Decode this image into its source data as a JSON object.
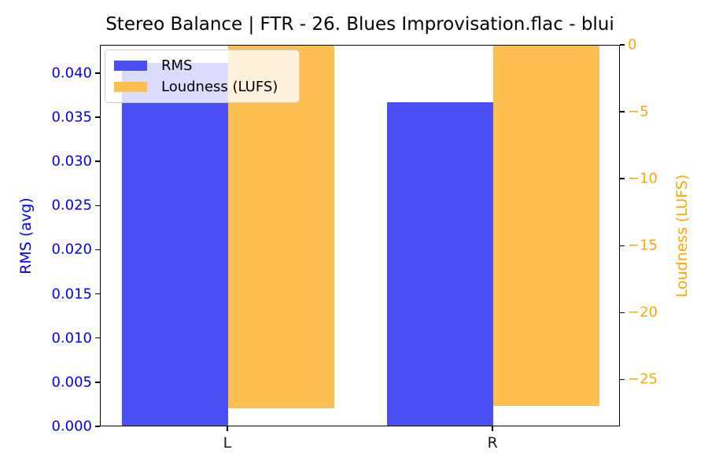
{
  "chart_data": {
    "type": "bar",
    "title": "Stereo Balance | FTR - 26. Blues Improvisation.flac - blui",
    "categories": [
      "L",
      "R"
    ],
    "series": [
      {
        "name": "RMS",
        "axis": "left",
        "color": "#4a4ff5",
        "values": [
          0.0412,
          0.0368
        ]
      },
      {
        "name": "Loudness (LUFS)",
        "axis": "right",
        "color": "#fdbf4f",
        "values": [
          -27.1,
          -26.9
        ]
      }
    ],
    "left_axis": {
      "label": "RMS (avg)",
      "color": "#0000ee",
      "ylim": [
        0,
        0.0432
      ],
      "ticks": [
        {
          "v": 0.0,
          "label": "0.000"
        },
        {
          "v": 0.005,
          "label": "0.005"
        },
        {
          "v": 0.01,
          "label": "0.010"
        },
        {
          "v": 0.015,
          "label": "0.015"
        },
        {
          "v": 0.02,
          "label": "0.020"
        },
        {
          "v": 0.025,
          "label": "0.025"
        },
        {
          "v": 0.03,
          "label": "0.030"
        },
        {
          "v": 0.035,
          "label": "0.035"
        },
        {
          "v": 0.04,
          "label": "0.040"
        }
      ]
    },
    "right_axis": {
      "label": "Loudness (LUFS)",
      "color": "#ffa500",
      "ylim": [
        -28.5,
        0
      ],
      "ticks": [
        {
          "v": 0,
          "label": "0"
        },
        {
          "v": -5,
          "label": "−5"
        },
        {
          "v": -10,
          "label": "−10"
        },
        {
          "v": -15,
          "label": "−15"
        },
        {
          "v": -20,
          "label": "−20"
        },
        {
          "v": -25,
          "label": "−25"
        }
      ]
    },
    "legend": {
      "position": "upper left",
      "items": [
        {
          "label": "RMS",
          "color": "#4a4ff5"
        },
        {
          "label": "Loudness (LUFS)",
          "color": "#fdbf4f"
        }
      ]
    },
    "layout": {
      "x_positions": [
        0,
        1
      ],
      "xlim": [
        -0.48,
        1.48
      ],
      "bar_width": 0.4,
      "grid": false,
      "spine_color": "#000000"
    }
  }
}
